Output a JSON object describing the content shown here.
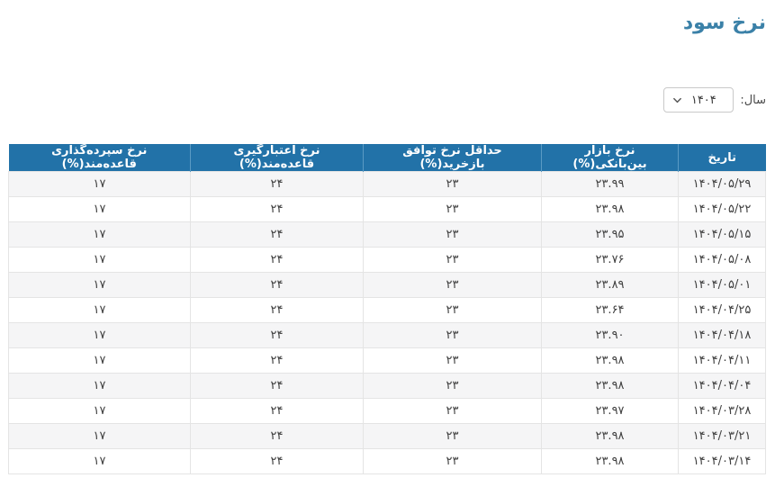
{
  "page": {
    "title": "نرخ سود"
  },
  "year_selector": {
    "label": "سال:",
    "value": "۱۴۰۴",
    "chevron_icon": "chevron-down"
  },
  "table": {
    "column_keys": [
      "date",
      "interbank",
      "repo",
      "credit",
      "deposit"
    ],
    "columns": [
      "تاریخ",
      "نرخ بازار بین‌بانکی(%)",
      "حداقل نرخ توافق بازخرید(%)",
      "نرخ اعتبارگیری قاعده‌مند(%)",
      "نرخ سپرده‌گذاری قاعده‌مند(%)"
    ],
    "rows": [
      [
        "۱۴۰۴/۰۵/۲۹",
        "۲۳.۹۹",
        "۲۳",
        "۲۴",
        "۱۷"
      ],
      [
        "۱۴۰۴/۰۵/۲۲",
        "۲۳.۹۸",
        "۲۳",
        "۲۴",
        "۱۷"
      ],
      [
        "۱۴۰۴/۰۵/۱۵",
        "۲۳.۹۵",
        "۲۳",
        "۲۴",
        "۱۷"
      ],
      [
        "۱۴۰۴/۰۵/۰۸",
        "۲۳.۷۶",
        "۲۳",
        "۲۴",
        "۱۷"
      ],
      [
        "۱۴۰۴/۰۵/۰۱",
        "۲۳.۸۹",
        "۲۳",
        "۲۴",
        "۱۷"
      ],
      [
        "۱۴۰۴/۰۴/۲۵",
        "۲۳.۶۴",
        "۲۳",
        "۲۴",
        "۱۷"
      ],
      [
        "۱۴۰۴/۰۴/۱۸",
        "۲۳.۹۰",
        "۲۳",
        "۲۴",
        "۱۷"
      ],
      [
        "۱۴۰۴/۰۴/۱۱",
        "۲۳.۹۸",
        "۲۳",
        "۲۴",
        "۱۷"
      ],
      [
        "۱۴۰۴/۰۴/۰۴",
        "۲۳.۹۸",
        "۲۳",
        "۲۴",
        "۱۷"
      ],
      [
        "۱۴۰۴/۰۳/۲۸",
        "۲۳.۹۷",
        "۲۳",
        "۲۴",
        "۱۷"
      ],
      [
        "۱۴۰۴/۰۳/۲۱",
        "۲۳.۹۸",
        "۲۳",
        "۲۴",
        "۱۷"
      ],
      [
        "۱۴۰۴/۰۳/۱۴",
        "۲۳.۹۸",
        "۲۳",
        "۲۴",
        "۱۷"
      ]
    ]
  },
  "colors": {
    "header_bg": "#2272a8",
    "title_text": "#3b81a8",
    "row_stripe": "#f5f5f6",
    "cell_border": "#e4e4e4",
    "header_text": "#ffffff"
  }
}
